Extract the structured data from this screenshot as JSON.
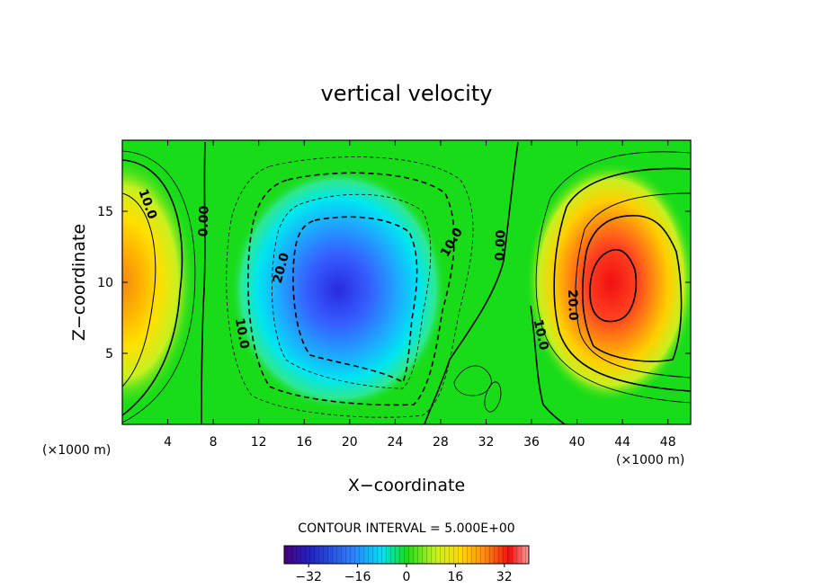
{
  "chart_data": {
    "type": "contour",
    "title": "vertical velocity",
    "xlabel": "X−coordinate",
    "ylabel": "Z−coordinate",
    "x_unit_note": "(×1000 m)",
    "y_unit_note": "(×1000 m)",
    "xlim": [
      0,
      50
    ],
    "ylim": [
      0,
      20
    ],
    "x_ticks": [
      4,
      8,
      12,
      16,
      20,
      24,
      28,
      32,
      36,
      40,
      44,
      48
    ],
    "y_ticks": [
      5,
      10,
      15
    ],
    "contour_interval_label": "CONTOUR INTERVAL = 5.000E+00",
    "contour_labels": [
      {
        "text": "10.0",
        "x": 2.2,
        "z": 15.5,
        "angle": 70
      },
      {
        "text": "0.00",
        "x": 7.2,
        "z": 14.3,
        "angle": -88
      },
      {
        "text": "20.0",
        "x": 14.0,
        "z": 11.0,
        "angle": -75
      },
      {
        "text": "10.0",
        "x": 10.5,
        "z": 6.4,
        "angle": 80
      },
      {
        "text": "10.0",
        "x": 29.0,
        "z": 12.8,
        "angle": -60
      },
      {
        "text": "0.00",
        "x": 33.3,
        "z": 12.6,
        "angle": -88
      },
      {
        "text": "20.0",
        "x": 39.6,
        "z": 8.4,
        "angle": 88
      },
      {
        "text": "10.0",
        "x": 36.8,
        "z": 6.3,
        "angle": 78
      }
    ],
    "cells": [
      {
        "name": "updraft-west",
        "sign": 1,
        "x": 0,
        "z": 10,
        "rx": 6.5,
        "rz": 9,
        "peak": 26
      },
      {
        "name": "downdraft-center",
        "sign": -1,
        "x": 19,
        "z": 9.5,
        "rx": 9.5,
        "rz": 8.5,
        "peak": 33
      },
      {
        "name": "updraft-east",
        "sign": 1,
        "x": 43,
        "z": 10,
        "rx": 7.5,
        "rz": 8.5,
        "peak": 34
      }
    ],
    "colorbar": {
      "min": -40,
      "max": 40,
      "ticks": [
        -32,
        -16,
        0,
        16,
        32
      ],
      "tick_labels": [
        "−32",
        "−16",
        "0",
        "16",
        "32"
      ]
    }
  }
}
